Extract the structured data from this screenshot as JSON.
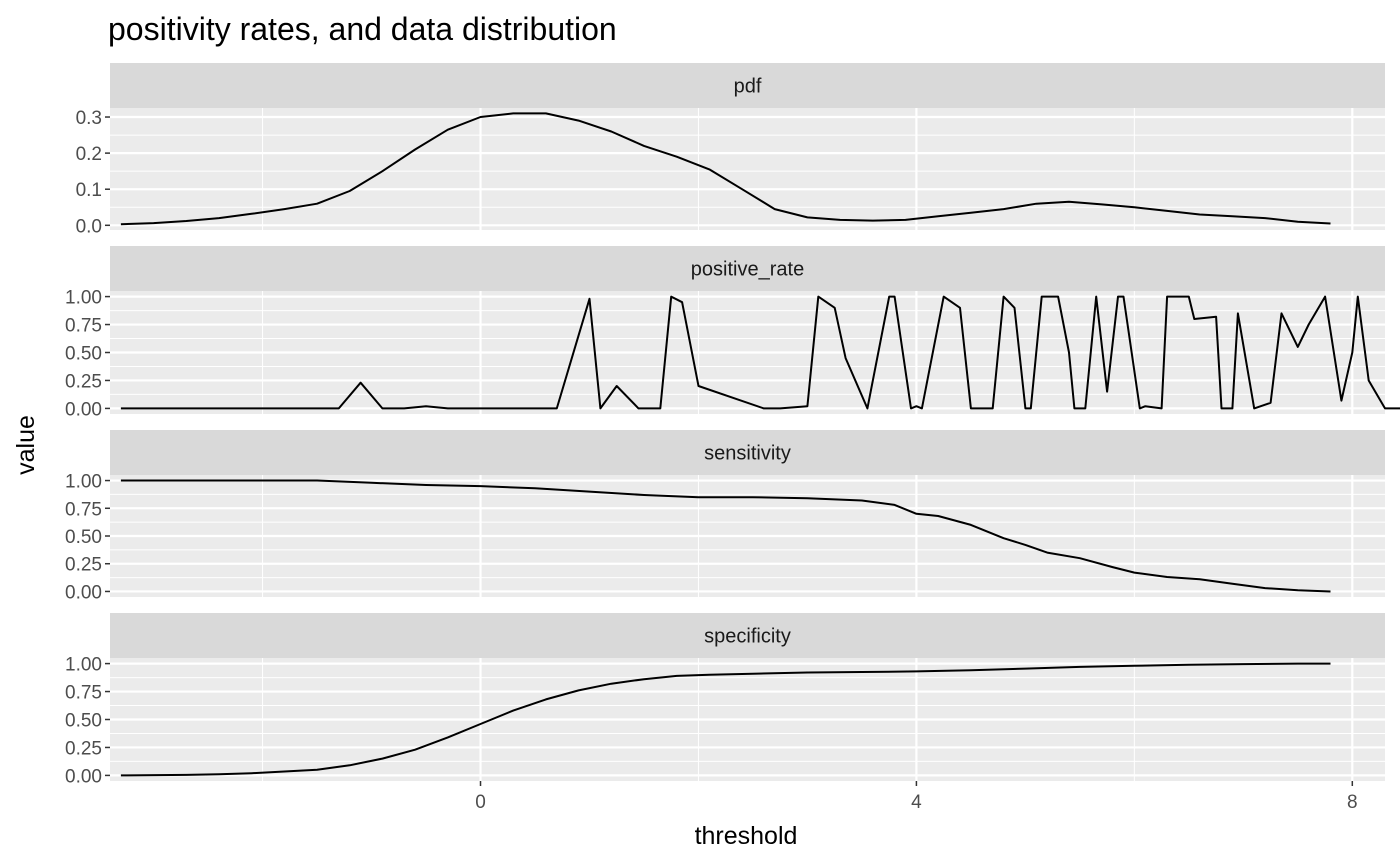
{
  "chart_data": {
    "type": "line",
    "title": "positivity rates, and data distribution",
    "xlabel": "threshold",
    "ylabel": "value",
    "xlim": [
      -3.4,
      8.3
    ],
    "x_ticks": [
      0,
      4,
      8
    ],
    "x_tick_labels": [
      "0",
      "4",
      "8"
    ],
    "grid": true,
    "legend": "none",
    "line_color": "#000000",
    "panel_background": "#ebebeb",
    "strip_background": "#d9d9d9",
    "grid_color": "#ffffff",
    "facets": [
      {
        "name": "pdf",
        "ylim": [
          -0.013,
          0.325
        ],
        "y_ticks": [
          0,
          0.1,
          0.2,
          0.3
        ],
        "y_tick_labels": [
          "0.0",
          "0.1",
          "0.2",
          "0.3"
        ],
        "x": [
          -3.3,
          -3.0,
          -2.7,
          -2.4,
          -2.1,
          -1.8,
          -1.5,
          -1.2,
          -0.9,
          -0.6,
          -0.3,
          0.0,
          0.3,
          0.6,
          0.9,
          1.2,
          1.5,
          1.8,
          2.1,
          2.4,
          2.7,
          3.0,
          3.3,
          3.6,
          3.9,
          4.2,
          4.5,
          4.8,
          5.1,
          5.4,
          5.7,
          6.0,
          6.3,
          6.6,
          6.9,
          7.2,
          7.5,
          7.8
        ],
        "y": [
          0.003,
          0.006,
          0.012,
          0.02,
          0.032,
          0.045,
          0.06,
          0.095,
          0.15,
          0.21,
          0.265,
          0.3,
          0.31,
          0.31,
          0.29,
          0.26,
          0.22,
          0.19,
          0.155,
          0.1,
          0.045,
          0.022,
          0.015,
          0.013,
          0.015,
          0.025,
          0.035,
          0.045,
          0.06,
          0.065,
          0.058,
          0.05,
          0.04,
          0.03,
          0.025,
          0.02,
          0.01,
          0.005
        ]
      },
      {
        "name": "positive_rate",
        "ylim": [
          -0.05,
          1.05
        ],
        "y_ticks": [
          0,
          0.25,
          0.5,
          0.75,
          1
        ],
        "y_tick_labels": [
          "0.00",
          "0.25",
          "0.50",
          "0.75",
          "1.00"
        ],
        "x": [
          -3.3,
          -1.3,
          -1.1,
          -0.9,
          -0.7,
          -0.5,
          -0.3,
          0.3,
          0.7,
          1.0,
          1.1,
          1.25,
          1.45,
          1.65,
          1.75,
          1.85,
          2.0,
          2.6,
          2.75,
          3.0,
          3.1,
          3.25,
          3.35,
          3.55,
          3.75,
          3.8,
          3.95,
          4.0,
          4.05,
          4.25,
          4.4,
          4.5,
          4.7,
          4.8,
          4.9,
          5.0,
          5.05,
          5.15,
          5.3,
          5.4,
          5.45,
          5.55,
          5.65,
          5.75,
          5.85,
          5.9,
          6.05,
          6.1,
          6.25,
          6.3,
          6.5,
          6.55,
          6.75,
          6.8,
          6.9,
          6.95,
          7.1,
          7.25,
          7.35,
          7.5,
          7.6,
          7.75,
          7.9,
          8.0,
          8.05,
          8.15,
          8.3,
          8.35,
          8.5
        ],
        "y": [
          0,
          0,
          0.23,
          0,
          0,
          0.02,
          0,
          0,
          0,
          0.98,
          0,
          0.2,
          0,
          0,
          1.0,
          0.95,
          0.2,
          0,
          0,
          0.02,
          1.0,
          0.9,
          0.45,
          0,
          1.0,
          1.0,
          0,
          0.02,
          0,
          1.0,
          0.9,
          0,
          0,
          1.0,
          0.9,
          0,
          0,
          1.0,
          1.0,
          0.5,
          0,
          0,
          1.0,
          0.15,
          1.0,
          1.0,
          0,
          0.02,
          0,
          1.0,
          1.0,
          0.8,
          0.82,
          0,
          0,
          0.85,
          0,
          0.05,
          0.85,
          0.55,
          0.75,
          1.0,
          0.07,
          0.5,
          1.0,
          0.25,
          0,
          0,
          0
        ]
      },
      {
        "name": "sensitivity",
        "ylim": [
          -0.05,
          1.05
        ],
        "y_ticks": [
          0,
          0.25,
          0.5,
          0.75,
          1
        ],
        "y_tick_labels": [
          "0.00",
          "0.25",
          "0.50",
          "0.75",
          "1.00"
        ],
        "x": [
          -3.3,
          -1.5,
          -1.0,
          -0.5,
          0.0,
          0.5,
          1.0,
          1.5,
          2.0,
          2.5,
          3.0,
          3.5,
          3.8,
          4.0,
          4.2,
          4.5,
          4.8,
          5.0,
          5.2,
          5.5,
          5.8,
          6.0,
          6.3,
          6.6,
          6.9,
          7.2,
          7.5,
          7.8
        ],
        "y": [
          1.0,
          1.0,
          0.98,
          0.96,
          0.95,
          0.93,
          0.9,
          0.87,
          0.85,
          0.85,
          0.84,
          0.82,
          0.78,
          0.7,
          0.68,
          0.6,
          0.48,
          0.42,
          0.35,
          0.3,
          0.22,
          0.17,
          0.13,
          0.11,
          0.07,
          0.03,
          0.01,
          0.0
        ]
      },
      {
        "name": "specificity",
        "ylim": [
          -0.05,
          1.05
        ],
        "y_ticks": [
          0,
          0.25,
          0.5,
          0.75,
          1
        ],
        "y_tick_labels": [
          "0.00",
          "0.25",
          "0.50",
          "0.75",
          "1.00"
        ],
        "x": [
          -3.3,
          -2.7,
          -2.4,
          -2.1,
          -1.8,
          -1.5,
          -1.2,
          -0.9,
          -0.6,
          -0.3,
          0.0,
          0.3,
          0.6,
          0.9,
          1.2,
          1.5,
          1.8,
          2.1,
          2.5,
          3.0,
          3.5,
          4.0,
          4.5,
          5.0,
          5.5,
          6.0,
          6.5,
          7.0,
          7.5,
          7.8
        ],
        "y": [
          0.0,
          0.005,
          0.01,
          0.02,
          0.035,
          0.05,
          0.09,
          0.15,
          0.23,
          0.34,
          0.46,
          0.58,
          0.68,
          0.76,
          0.82,
          0.86,
          0.89,
          0.9,
          0.91,
          0.92,
          0.925,
          0.93,
          0.94,
          0.955,
          0.97,
          0.98,
          0.99,
          0.995,
          1.0,
          1.0
        ]
      }
    ]
  }
}
